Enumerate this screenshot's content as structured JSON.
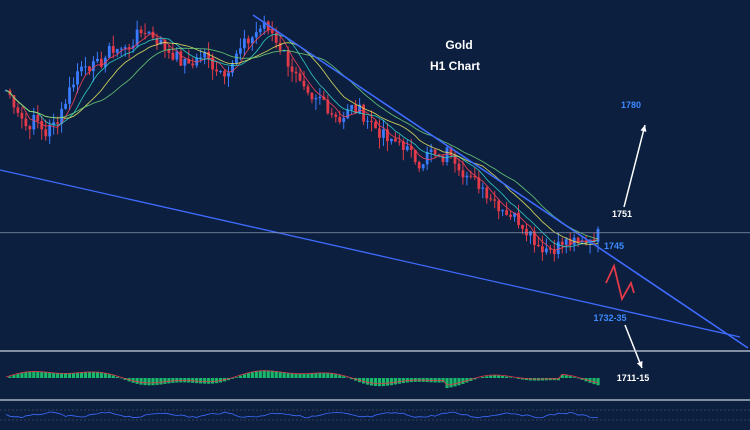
{
  "chart_data": {
    "type": "candlestick",
    "title": "Gold",
    "subtitle": "H1 Chart",
    "instrument": "Gold",
    "timeframe": "H1",
    "ylim": [
      1706,
      1803
    ],
    "colors": {
      "background": "#0c1f3f",
      "bull": "#3a7bff",
      "bear": "#e23a48",
      "trendline": "#3f6bff",
      "ma": [
        "#ff4455",
        "#33d6c9",
        "#e8e860",
        "#6fd37a"
      ],
      "macd_hist": "#19b86a",
      "label_blue": "#3d8bff",
      "label_white": "#ffffff"
    },
    "closes": [
      1778,
      1774,
      1768,
      1770,
      1766,
      1769,
      1775,
      1782,
      1786,
      1784,
      1787,
      1790,
      1789,
      1792,
      1795,
      1793,
      1790,
      1788,
      1785,
      1786,
      1788,
      1785,
      1783,
      1786,
      1790,
      1793,
      1796,
      1794,
      1789,
      1784,
      1778,
      1774,
      1776,
      1772,
      1770,
      1773,
      1772,
      1769,
      1766,
      1763,
      1764,
      1760,
      1758,
      1761,
      1758,
      1762,
      1757,
      1753,
      1752,
      1749,
      1746,
      1744,
      1742,
      1739,
      1735,
      1734,
      1735,
      1736,
      1735,
      1737,
      1738
    ],
    "levels": [
      {
        "label": "1780",
        "value": 1780
      },
      {
        "label": "1751",
        "value": 1751
      },
      {
        "label": "1745",
        "value": 1745
      },
      {
        "label": "1732-35",
        "value": 1733.5
      },
      {
        "label": "1711-15",
        "value": 1713
      }
    ],
    "reference_price": 1738.5
  }
}
